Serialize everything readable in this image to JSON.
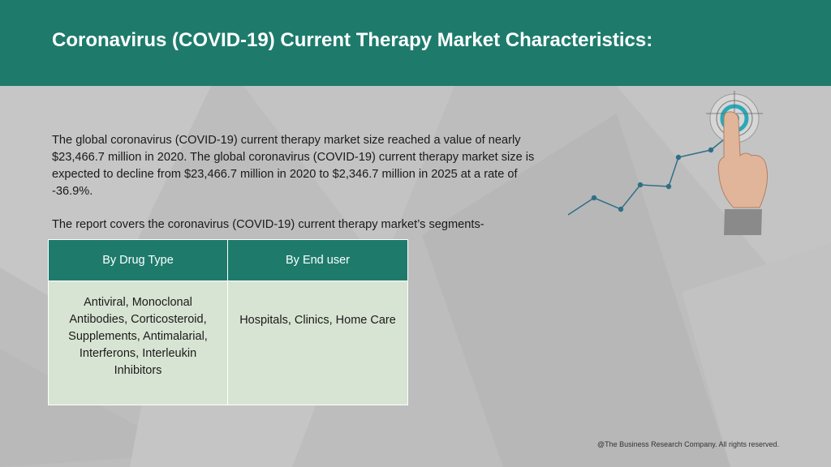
{
  "header": {
    "title": "Coronavirus (COVID-19) Current Therapy Market Characteristics:"
  },
  "body": {
    "intro": "The global coronavirus (COVID-19) current therapy market size reached a value of nearly $23,466.7 million in 2020. The global coronavirus (COVID-19) current therapy market size is expected to decline from $23,466.7 million in 2020 to $2,346.7 million in 2025 at a rate of -36.9%.",
    "covers": "The report covers the coronavirus (COVID-19) current therapy market’s segments-"
  },
  "segments_table": {
    "headers": [
      "By Drug Type",
      "By End user"
    ],
    "cells": [
      "Antiviral,  Monoclonal Antibodies, Corticosteroid, Supplements, Antimalarial, Interferons, Interleukin Inhibitors",
      "Hospitals, Clinics, Home Care"
    ]
  },
  "illustration": {
    "icon": "target-hand-growth-line-icon"
  },
  "footer": {
    "copyright": "@The Business Research Company. All rights reserved."
  },
  "colors": {
    "header_bg": "#1e7b6c",
    "table_header_bg": "#1e7b6c",
    "table_body_bg": "#d8e4d3",
    "page_bg": "#bfbfbf",
    "target_ring": "#2aa8b8"
  }
}
